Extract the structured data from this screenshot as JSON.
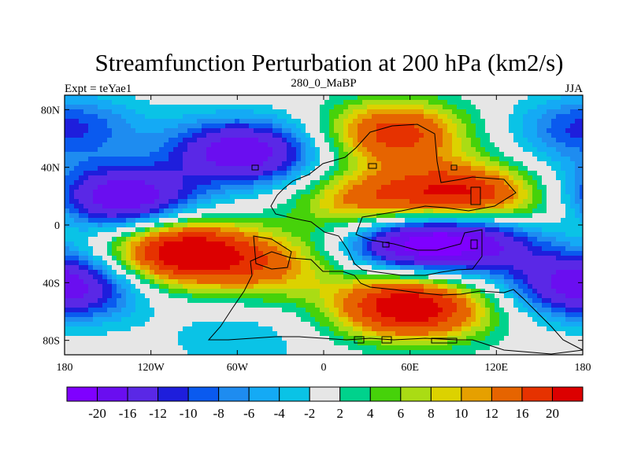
{
  "chart_data": {
    "type": "heatmap",
    "title": "Streamfunction Perturbation at 200 hPa (km2/s)",
    "left_label": "Expt = teYae1",
    "center_label": "280_0_MaBP",
    "right_label": "JJA",
    "x_range": [
      -180,
      180
    ],
    "y_range": [
      -90,
      90
    ],
    "x_ticks": [
      {
        "value": -180,
        "label": "180"
      },
      {
        "value": -120,
        "label": "120W"
      },
      {
        "value": -60,
        "label": "60W"
      },
      {
        "value": 0,
        "label": "0"
      },
      {
        "value": 60,
        "label": "60E"
      },
      {
        "value": 120,
        "label": "120E"
      },
      {
        "value": 180,
        "label": "180"
      }
    ],
    "y_ticks": [
      {
        "value": 80,
        "label": "80N"
      },
      {
        "value": 40,
        "label": "40N"
      },
      {
        "value": 0,
        "label": "0"
      },
      {
        "value": -40,
        "label": "40S"
      },
      {
        "value": -80,
        "label": "80S"
      }
    ],
    "contour_levels": [
      -20,
      -16,
      -12,
      -10,
      -8,
      -6,
      -4,
      -2,
      2,
      4,
      6,
      8,
      10,
      12,
      16,
      20
    ],
    "colorbar_labels": [
      "-20",
      "-16",
      "-12",
      "-10",
      "-8",
      "-6",
      "-4",
      "-2",
      "2",
      "4",
      "6",
      "8",
      "10",
      "12",
      "16",
      "20"
    ],
    "colors": [
      "#7f00ff",
      "#6a0ef0",
      "#5a28e6",
      "#1e1edc",
      "#0a5aef",
      "#1e8cf0",
      "#14aaf5",
      "#0ac3e6",
      "#e6e6e6",
      "#00d28c",
      "#46d20a",
      "#aadc14",
      "#dcd200",
      "#e6a000",
      "#e66400",
      "#e63200",
      "#dc0000"
    ],
    "field_centers": [
      {
        "lon": -135,
        "lat": 18,
        "value": -19
      },
      {
        "lon": -40,
        "lat": 48,
        "value": -8
      },
      {
        "lon": -65,
        "lat": 52,
        "value": -13
      },
      {
        "lon": -170,
        "lat": 70,
        "value": -5
      },
      {
        "lon": -175,
        "lat": -45,
        "value": -14
      },
      {
        "lon": -60,
        "lat": -80,
        "value": -4
      },
      {
        "lon": -100,
        "lat": -18,
        "value": 24
      },
      {
        "lon": -40,
        "lat": -28,
        "value": 12
      },
      {
        "lon": 50,
        "lat": -55,
        "value": 18
      },
      {
        "lon": 80,
        "lat": -60,
        "value": 9
      },
      {
        "lon": 150,
        "lat": -18,
        "value": 2
      },
      {
        "lon": 50,
        "lat": 64,
        "value": 18
      },
      {
        "lon": 30,
        "lat": 16,
        "value": 14
      },
      {
        "lon": 95,
        "lat": 20,
        "value": 21
      },
      {
        "lon": 150,
        "lat": 12,
        "value": 8
      },
      {
        "lon": 60,
        "lat": -12,
        "value": -20
      },
      {
        "lon": 110,
        "lat": -8,
        "value": -17
      },
      {
        "lon": 165,
        "lat": -32,
        "value": -8
      },
      {
        "lon": 175,
        "lat": 65,
        "value": -6
      },
      {
        "lon": 175,
        "lat": 20,
        "value": -6
      }
    ]
  }
}
